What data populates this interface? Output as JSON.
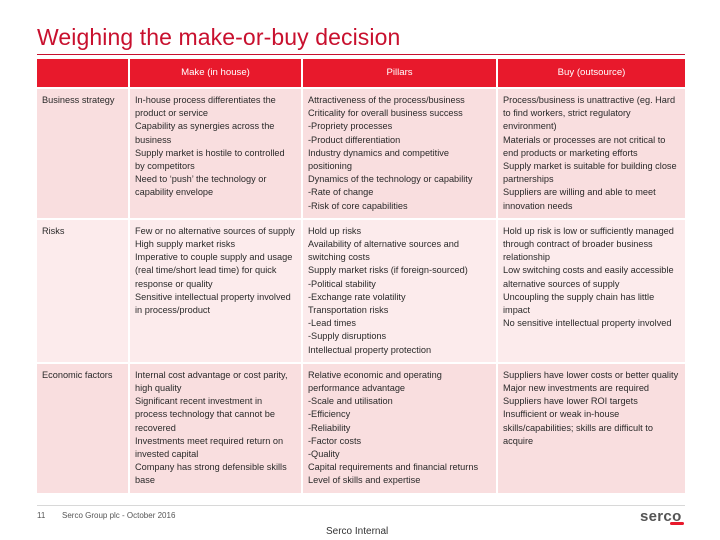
{
  "title": "Weighing the make-or-buy decision",
  "table": {
    "headers": [
      "",
      "Make (in house)",
      "Pillars",
      "Buy (outsource)"
    ],
    "rows": [
      {
        "label": "Business strategy",
        "make": [
          "In-house process differentiates the product or service",
          "Capability as synergies across the business",
          "Supply market is hostile to controlled by competitors",
          "Need to ‘push’ the technology or capability envelope"
        ],
        "pillars": [
          "Attractiveness of the process/business",
          "Criticality for overall business success",
          "-Propriety processes",
          "-Product differentiation",
          "Industry dynamics and competitive positioning",
          "Dynamics of the technology or capability",
          "-Rate of change",
          "-Risk of core capabilities"
        ],
        "buy": [
          "Process/business is unattractive (eg. Hard to find workers, strict regulatory environment)",
          "Materials or processes are not critical to end products or marketing efforts",
          "Supply market is suitable for building close partnerships",
          "Suppliers are willing and able to meet innovation needs"
        ]
      },
      {
        "label": "Risks",
        "make": [
          "Few or no alternative sources of supply",
          "High supply market risks",
          "Imperative to couple supply and usage (real time/short lead time) for quick response or quality",
          "Sensitive intellectual property involved in process/product"
        ],
        "pillars": [
          "Hold up risks",
          "Availability of alternative sources and switching costs",
          "Supply market risks (if foreign-sourced)",
          "-Political stability",
          "-Exchange rate volatility",
          "Transportation risks",
          "-Lead times",
          "-Supply disruptions",
          "Intellectual property protection"
        ],
        "buy": [
          "Hold up risk is low or sufficiently managed through contract of broader business relationship",
          "Low switching costs and easily accessible alternative sources of supply",
          "Uncoupling the supply chain has little impact",
          "No sensitive intellectual property involved"
        ]
      },
      {
        "label": "Economic factors",
        "make": [
          "Internal cost advantage or cost parity, high quality",
          "Significant recent investment in process technology that cannot be recovered",
          "Investments meet required return on invested capital",
          "Company has strong defensible skills base"
        ],
        "pillars": [
          "Relative economic and operating performance advantage",
          "-Scale and utilisation",
          "-Efficiency",
          "-Reliability",
          "-Factor costs",
          "-Quality",
          "Capital requirements and financial returns",
          "Level of skills and expertise"
        ],
        "buy": [
          "Suppliers have lower costs or better quality",
          "Major new investments are required",
          "Suppliers have lower ROI targets",
          "Insufficient or weak in-house skills/capabilities; skills are difficult to acquire"
        ]
      }
    ]
  },
  "footer": {
    "page_number": "11",
    "text": "Serco Group plc - October 2016",
    "classification": "Serco Internal",
    "logo": "serco"
  },
  "colors": {
    "accent": "#c8102e",
    "header_bg": "#e8192c",
    "row_bg_1": "#f9dedf",
    "row_bg_2": "#fcebec"
  }
}
